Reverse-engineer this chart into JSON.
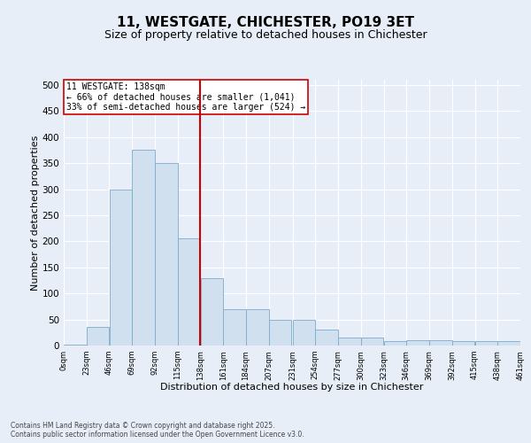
{
  "title": "11, WESTGATE, CHICHESTER, PO19 3ET",
  "subtitle": "Size of property relative to detached houses in Chichester",
  "xlabel": "Distribution of detached houses by size in Chichester",
  "ylabel": "Number of detached properties",
  "bins": [
    0,
    23,
    46,
    69,
    92,
    115,
    138,
    161,
    184,
    207,
    231,
    254,
    277,
    300,
    323,
    346,
    369,
    392,
    415,
    438,
    461
  ],
  "counts": [
    2,
    35,
    300,
    375,
    350,
    205,
    130,
    70,
    70,
    50,
    50,
    30,
    15,
    15,
    8,
    10,
    10,
    8,
    8,
    8
  ],
  "bar_color": "#d0e0ef",
  "bar_edge_color": "#7aabcc",
  "vline_x": 138,
  "vline_color": "#cc0000",
  "annotation_text": "11 WESTGATE: 138sqm\n← 66% of detached houses are smaller (1,041)\n33% of semi-detached houses are larger (524) →",
  "annotation_box_color": "#cc0000",
  "background_color": "#e8eef8",
  "grid_color": "#ffffff",
  "title_fontsize": 11,
  "subtitle_fontsize": 9,
  "xlabel_fontsize": 8,
  "ylabel_fontsize": 8,
  "footer_text": "Contains HM Land Registry data © Crown copyright and database right 2025.\nContains public sector information licensed under the Open Government Licence v3.0.",
  "ylim": [
    0,
    510
  ],
  "yticks": [
    0,
    50,
    100,
    150,
    200,
    250,
    300,
    350,
    400,
    450,
    500
  ]
}
